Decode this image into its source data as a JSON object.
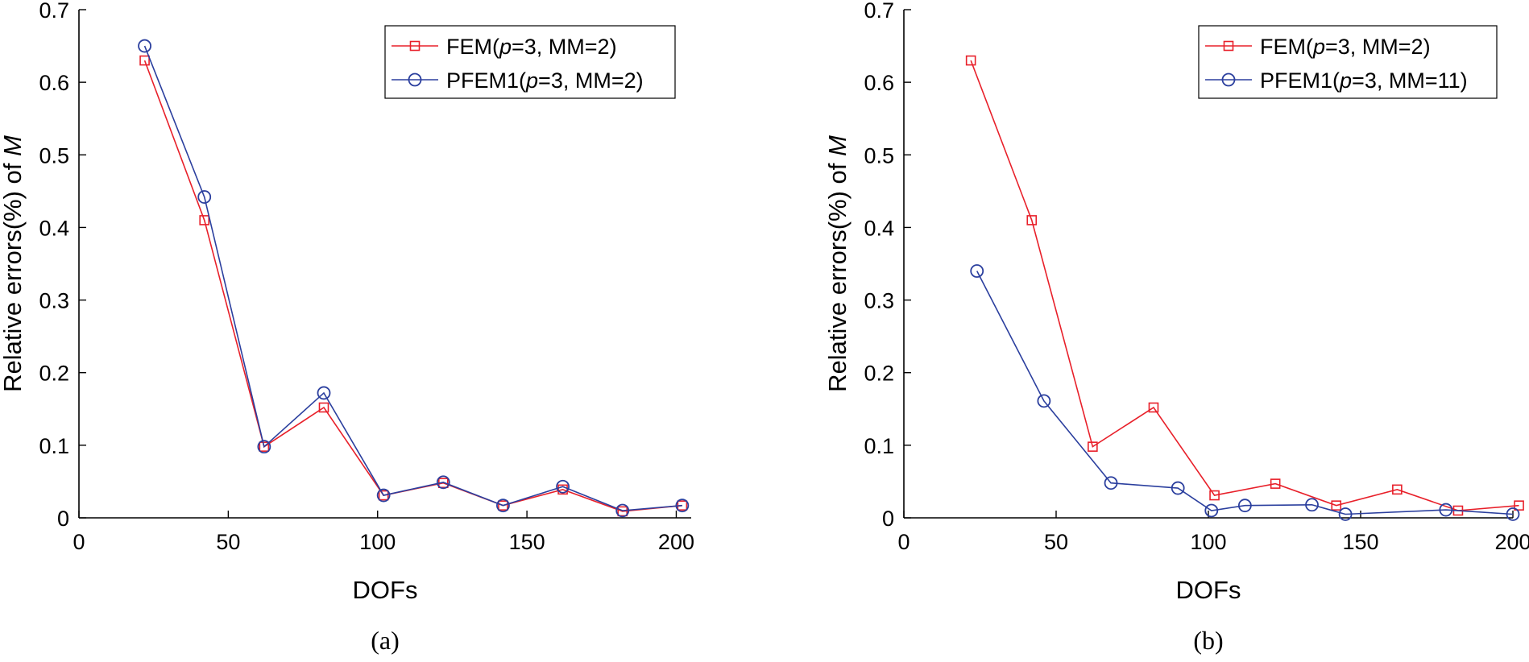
{
  "chart_data": [
    {
      "type": "line",
      "caption": "(a)",
      "xlabel": "DOFs",
      "ylabel_prefix": "Relative errors(%) of ",
      "ylabel_var": "M",
      "xlim": [
        0,
        205
      ],
      "ylim": [
        0,
        0.7
      ],
      "xticks": [
        0,
        50,
        100,
        150,
        200
      ],
      "yticks": [
        0,
        0.1,
        0.2,
        0.3,
        0.4,
        0.5,
        0.6,
        0.7
      ],
      "legend_position": "top-right",
      "series": [
        {
          "name": "FEM",
          "legend_prefix": "FEM(",
          "legend_var": "p",
          "legend_suffix": "=3, MM=2)",
          "color": "#e8202a",
          "marker": "square",
          "x": [
            22,
            42,
            62,
            82,
            102,
            122,
            142,
            162,
            182,
            202
          ],
          "y": [
            0.63,
            0.41,
            0.098,
            0.152,
            0.031,
            0.048,
            0.017,
            0.039,
            0.009,
            0.017
          ]
        },
        {
          "name": "PFEM1",
          "legend_prefix": "PFEM1(",
          "legend_var": "p",
          "legend_suffix": "=3, MM=2)",
          "color": "#2b3f9e",
          "marker": "circle",
          "x": [
            22,
            42,
            62,
            82,
            102,
            122,
            142,
            162,
            182,
            202
          ],
          "y": [
            0.65,
            0.442,
            0.098,
            0.172,
            0.031,
            0.049,
            0.017,
            0.043,
            0.01,
            0.017
          ]
        }
      ]
    },
    {
      "type": "line",
      "caption": "(b)",
      "xlabel": "DOFs",
      "ylabel_prefix": "Relative errors(%) of ",
      "ylabel_var": "M",
      "xlim": [
        0,
        200
      ],
      "ylim": [
        0,
        0.7
      ],
      "xticks": [
        0,
        50,
        100,
        150,
        200
      ],
      "yticks": [
        0,
        0.1,
        0.2,
        0.3,
        0.4,
        0.5,
        0.6,
        0.7
      ],
      "legend_position": "top-right",
      "series": [
        {
          "name": "FEM",
          "legend_prefix": "FEM(",
          "legend_var": "p",
          "legend_suffix": "=3, MM=2)",
          "color": "#e8202a",
          "marker": "square",
          "x": [
            22,
            42,
            62,
            82,
            102,
            122,
            142,
            162,
            182,
            202
          ],
          "y": [
            0.63,
            0.41,
            0.098,
            0.152,
            0.031,
            0.047,
            0.017,
            0.039,
            0.01,
            0.017
          ]
        },
        {
          "name": "PFEM1",
          "legend_prefix": "PFEM1(",
          "legend_var": "p",
          "legend_suffix": "=3, MM=11)",
          "color": "#2b3f9e",
          "marker": "circle",
          "x": [
            24,
            46,
            68,
            90,
            101,
            112,
            134,
            145,
            178,
            200
          ],
          "y": [
            0.34,
            0.161,
            0.048,
            0.041,
            0.01,
            0.017,
            0.018,
            0.005,
            0.011,
            0.005
          ]
        }
      ]
    }
  ]
}
